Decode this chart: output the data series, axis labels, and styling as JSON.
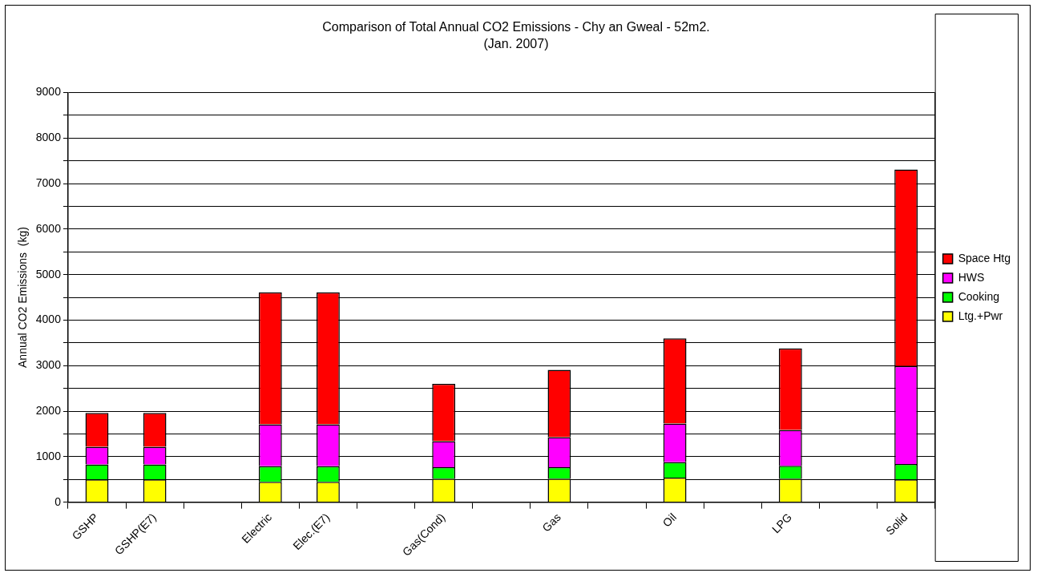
{
  "chart_data": {
    "type": "bar",
    "title": "Comparison of Total Annual CO2 Emissions - Chy an Gweal - 52m2.",
    "subtitle": "(Jan. 2007)",
    "ylabel": "Annual CO2 Emissions  (kg)",
    "categories": [
      "GSHP",
      "GSHP(E7)",
      null,
      "Electric",
      "Elec.(E7)",
      null,
      "Gas(Cond)",
      null,
      "Gas",
      null,
      "Oil",
      null,
      "LPG",
      null,
      "Solid"
    ],
    "series": [
      {
        "name": "Ltg.+Pwr",
        "color": "#ffff00",
        "values": [
          500,
          500,
          null,
          450,
          450,
          null,
          520,
          null,
          520,
          null,
          540,
          null,
          520,
          null,
          500
        ]
      },
      {
        "name": "Cooking",
        "color": "#00ff00",
        "values": [
          330,
          330,
          null,
          340,
          340,
          null,
          250,
          null,
          250,
          null,
          340,
          null,
          280,
          null,
          340
        ]
      },
      {
        "name": "HWS",
        "color": "#ff00ff",
        "values": [
          390,
          390,
          null,
          920,
          920,
          null,
          570,
          null,
          660,
          null,
          850,
          null,
          790,
          null,
          2150
        ]
      },
      {
        "name": "Space Htg",
        "color": "#ff0000",
        "values": [
          740,
          740,
          null,
          2900,
          2900,
          null,
          1260,
          null,
          1480,
          null,
          1870,
          null,
          1790,
          null,
          4320
        ]
      }
    ],
    "stacked": true,
    "ylim": [
      0,
      9000
    ],
    "yticks": [
      0,
      {
        "value": 500,
        "label": null
      },
      1000,
      {
        "value": 1500,
        "label": null
      },
      2000,
      {
        "value": 2500,
        "label": null
      },
      3000,
      {
        "value": 3500,
        "label": null
      },
      4000,
      {
        "value": 4500,
        "label": null
      },
      5000,
      {
        "value": 5500,
        "label": null
      },
      6000,
      {
        "value": 6500,
        "label": null
      },
      7000,
      {
        "value": 7500,
        "label": null
      },
      8000,
      {
        "value": 8500,
        "label": null
      },
      9000
    ],
    "grid": "y",
    "legend": "right"
  }
}
